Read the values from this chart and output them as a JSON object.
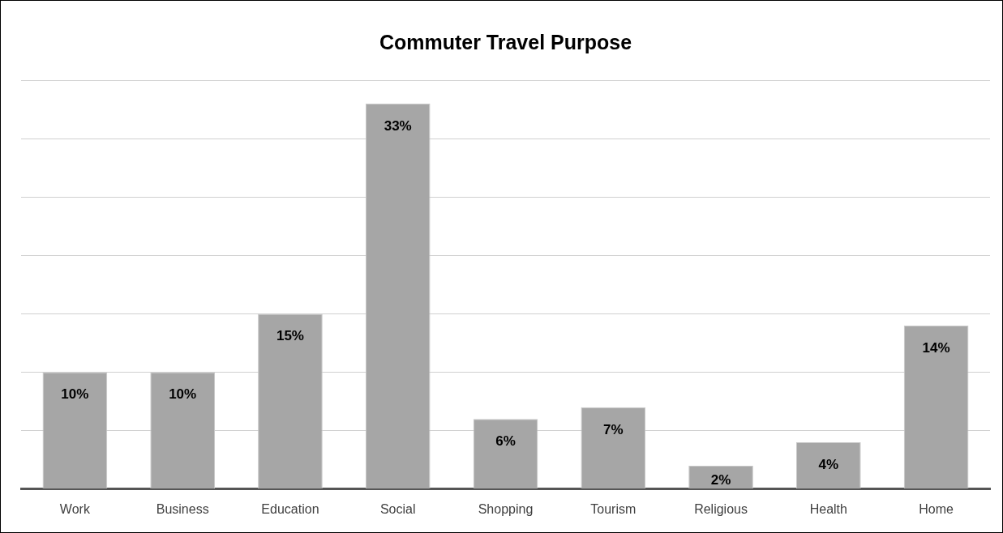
{
  "chart_data": {
    "type": "bar",
    "title": "Commuter Travel Purpose",
    "categories": [
      "Work",
      "Business",
      "Education",
      "Social",
      "Shopping",
      "Tourism",
      "Religious",
      "Health",
      "Home"
    ],
    "values": [
      10,
      10,
      15,
      33,
      6,
      7,
      2,
      4,
      14
    ],
    "value_labels": [
      "10%",
      "10%",
      "15%",
      "33%",
      "6%",
      "7%",
      "2%",
      "4%",
      "14%"
    ],
    "color": "#a6a6a6",
    "ylim": [
      0,
      35
    ],
    "yticks": [
      {
        "value": 0,
        "label": null
      },
      {
        "value": 5,
        "label": null
      },
      {
        "value": 10,
        "label": null
      },
      {
        "value": 15,
        "label": null
      },
      {
        "value": 20,
        "label": null
      },
      {
        "value": 25,
        "label": null
      },
      {
        "value": 30,
        "label": null
      },
      {
        "value": 35,
        "label": null
      }
    ],
    "grid": "y",
    "tick_labels": "x",
    "legend": false
  }
}
